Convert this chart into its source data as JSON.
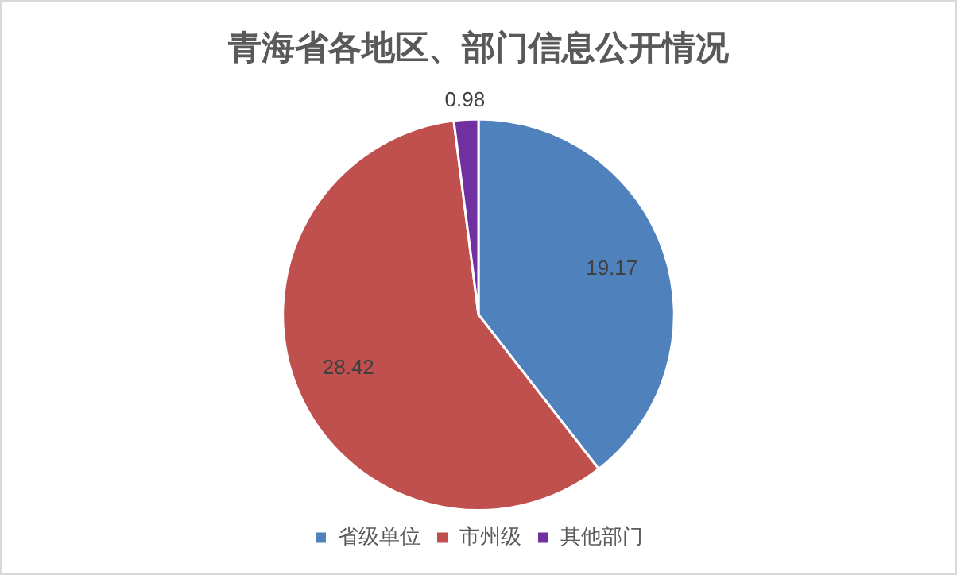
{
  "chart_data": {
    "type": "pie",
    "title": "青海省各地区、部门信息公开情况",
    "categories": [
      "省级单位",
      "市州级",
      "其他部门"
    ],
    "values": [
      19.17,
      28.42,
      0.98
    ],
    "colors": [
      "#4f81bd",
      "#c0504d",
      "#7030a0"
    ],
    "data_labels": true,
    "legend": "bottom"
  }
}
